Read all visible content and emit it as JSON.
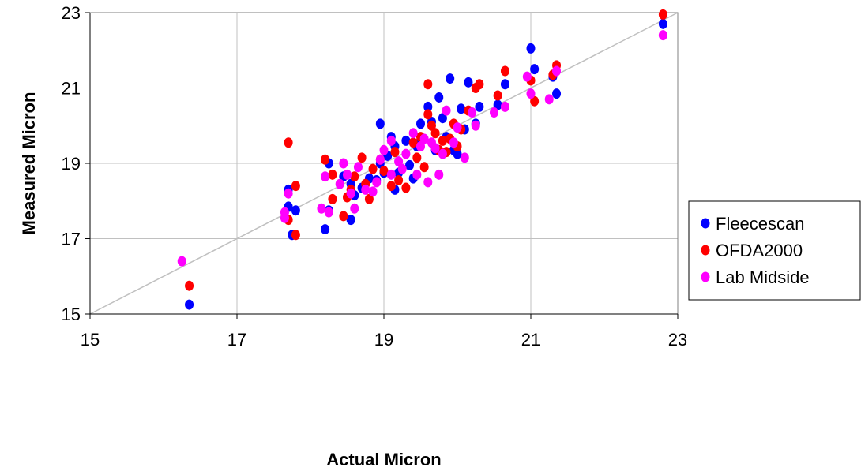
{
  "chart_data": {
    "type": "scatter",
    "title": "",
    "xlabel": "Actual Micron",
    "ylabel": "Measured Micron",
    "xlim": [
      15,
      23
    ],
    "ylim": [
      15,
      23
    ],
    "xticks": [
      15,
      17,
      19,
      21,
      23
    ],
    "yticks": [
      15,
      17,
      19,
      21,
      23
    ],
    "grid": true,
    "reference_line": {
      "from": [
        15,
        15
      ],
      "to": [
        23,
        23
      ],
      "color": "#c0c0c0"
    },
    "legend_position": "right",
    "series": [
      {
        "name": "Fleecescan",
        "color": "#0000ff",
        "points": [
          [
            16.35,
            15.25
          ],
          [
            17.7,
            18.3
          ],
          [
            17.7,
            17.85
          ],
          [
            17.8,
            17.75
          ],
          [
            17.75,
            17.1
          ],
          [
            18.2,
            17.25
          ],
          [
            18.25,
            17.75
          ],
          [
            18.25,
            19.0
          ],
          [
            18.45,
            18.65
          ],
          [
            18.55,
            17.5
          ],
          [
            18.55,
            18.45
          ],
          [
            18.6,
            18.15
          ],
          [
            18.7,
            18.35
          ],
          [
            18.8,
            18.6
          ],
          [
            18.9,
            18.55
          ],
          [
            18.95,
            20.05
          ],
          [
            18.95,
            19.0
          ],
          [
            19.0,
            18.75
          ],
          [
            19.05,
            19.2
          ],
          [
            19.1,
            19.7
          ],
          [
            19.15,
            19.45
          ],
          [
            19.15,
            18.3
          ],
          [
            19.2,
            18.75
          ],
          [
            19.3,
            19.6
          ],
          [
            19.35,
            18.95
          ],
          [
            19.4,
            18.6
          ],
          [
            19.45,
            19.45
          ],
          [
            19.5,
            19.6
          ],
          [
            19.5,
            20.05
          ],
          [
            19.6,
            20.5
          ],
          [
            19.65,
            20.1
          ],
          [
            19.7,
            19.35
          ],
          [
            19.75,
            20.75
          ],
          [
            19.8,
            20.2
          ],
          [
            19.85,
            19.7
          ],
          [
            19.9,
            21.25
          ],
          [
            19.95,
            19.35
          ],
          [
            20.0,
            19.25
          ],
          [
            20.05,
            20.45
          ],
          [
            20.1,
            19.9
          ],
          [
            20.15,
            21.15
          ],
          [
            20.25,
            20.05
          ],
          [
            20.3,
            20.5
          ],
          [
            20.55,
            20.55
          ],
          [
            20.65,
            21.1
          ],
          [
            21.0,
            22.05
          ],
          [
            21.05,
            21.5
          ],
          [
            21.3,
            21.3
          ],
          [
            21.35,
            20.85
          ],
          [
            22.8,
            22.7
          ]
        ]
      },
      {
        "name": "OFDA2000",
        "color": "#ff0000",
        "points": [
          [
            16.35,
            15.75
          ],
          [
            17.7,
            19.55
          ],
          [
            17.7,
            17.5
          ],
          [
            17.8,
            18.4
          ],
          [
            17.8,
            17.1
          ],
          [
            18.2,
            19.1
          ],
          [
            18.3,
            18.05
          ],
          [
            18.3,
            18.7
          ],
          [
            18.45,
            17.6
          ],
          [
            18.5,
            18.1
          ],
          [
            18.55,
            18.3
          ],
          [
            18.6,
            18.65
          ],
          [
            18.7,
            19.15
          ],
          [
            18.75,
            18.45
          ],
          [
            18.8,
            18.05
          ],
          [
            18.85,
            18.85
          ],
          [
            18.95,
            19.1
          ],
          [
            19.0,
            18.8
          ],
          [
            19.1,
            18.4
          ],
          [
            19.15,
            19.3
          ],
          [
            19.2,
            18.55
          ],
          [
            19.3,
            18.35
          ],
          [
            19.4,
            19.55
          ],
          [
            19.45,
            19.15
          ],
          [
            19.5,
            19.7
          ],
          [
            19.55,
            18.9
          ],
          [
            19.6,
            20.3
          ],
          [
            19.6,
            21.1
          ],
          [
            19.65,
            20.0
          ],
          [
            19.7,
            19.8
          ],
          [
            19.75,
            19.35
          ],
          [
            19.8,
            19.6
          ],
          [
            19.85,
            19.3
          ],
          [
            19.9,
            19.65
          ],
          [
            19.95,
            20.05
          ],
          [
            20.0,
            19.45
          ],
          [
            20.05,
            19.9
          ],
          [
            20.15,
            20.4
          ],
          [
            20.25,
            21.0
          ],
          [
            20.3,
            21.1
          ],
          [
            20.55,
            20.8
          ],
          [
            20.65,
            21.45
          ],
          [
            21.0,
            21.2
          ],
          [
            21.05,
            20.65
          ],
          [
            21.3,
            21.35
          ],
          [
            21.35,
            21.6
          ],
          [
            22.8,
            22.95
          ]
        ]
      },
      {
        "name": "Lab Midside",
        "color": "#ff00ff",
        "points": [
          [
            16.25,
            16.4
          ],
          [
            17.65,
            17.7
          ],
          [
            17.65,
            17.55
          ],
          [
            17.7,
            18.2
          ],
          [
            18.15,
            17.8
          ],
          [
            18.2,
            18.65
          ],
          [
            18.25,
            17.7
          ],
          [
            18.4,
            18.45
          ],
          [
            18.45,
            19.0
          ],
          [
            18.5,
            18.7
          ],
          [
            18.55,
            18.2
          ],
          [
            18.6,
            17.8
          ],
          [
            18.65,
            18.9
          ],
          [
            18.75,
            18.3
          ],
          [
            18.85,
            18.25
          ],
          [
            18.9,
            18.5
          ],
          [
            18.95,
            19.1
          ],
          [
            19.0,
            19.35
          ],
          [
            19.1,
            19.6
          ],
          [
            19.1,
            18.7
          ],
          [
            19.2,
            19.05
          ],
          [
            19.25,
            18.85
          ],
          [
            19.3,
            19.25
          ],
          [
            19.4,
            19.8
          ],
          [
            19.45,
            18.7
          ],
          [
            19.5,
            19.45
          ],
          [
            19.55,
            19.65
          ],
          [
            19.6,
            18.5
          ],
          [
            19.65,
            19.55
          ],
          [
            19.7,
            19.4
          ],
          [
            19.75,
            18.7
          ],
          [
            19.8,
            19.25
          ],
          [
            19.85,
            20.4
          ],
          [
            19.95,
            19.55
          ],
          [
            20.0,
            19.95
          ],
          [
            20.1,
            19.15
          ],
          [
            20.2,
            20.35
          ],
          [
            20.25,
            20.0
          ],
          [
            20.5,
            20.35
          ],
          [
            20.65,
            20.5
          ],
          [
            20.95,
            21.3
          ],
          [
            21.0,
            20.85
          ],
          [
            21.25,
            20.7
          ],
          [
            21.35,
            21.45
          ],
          [
            22.8,
            22.4
          ]
        ]
      }
    ]
  }
}
